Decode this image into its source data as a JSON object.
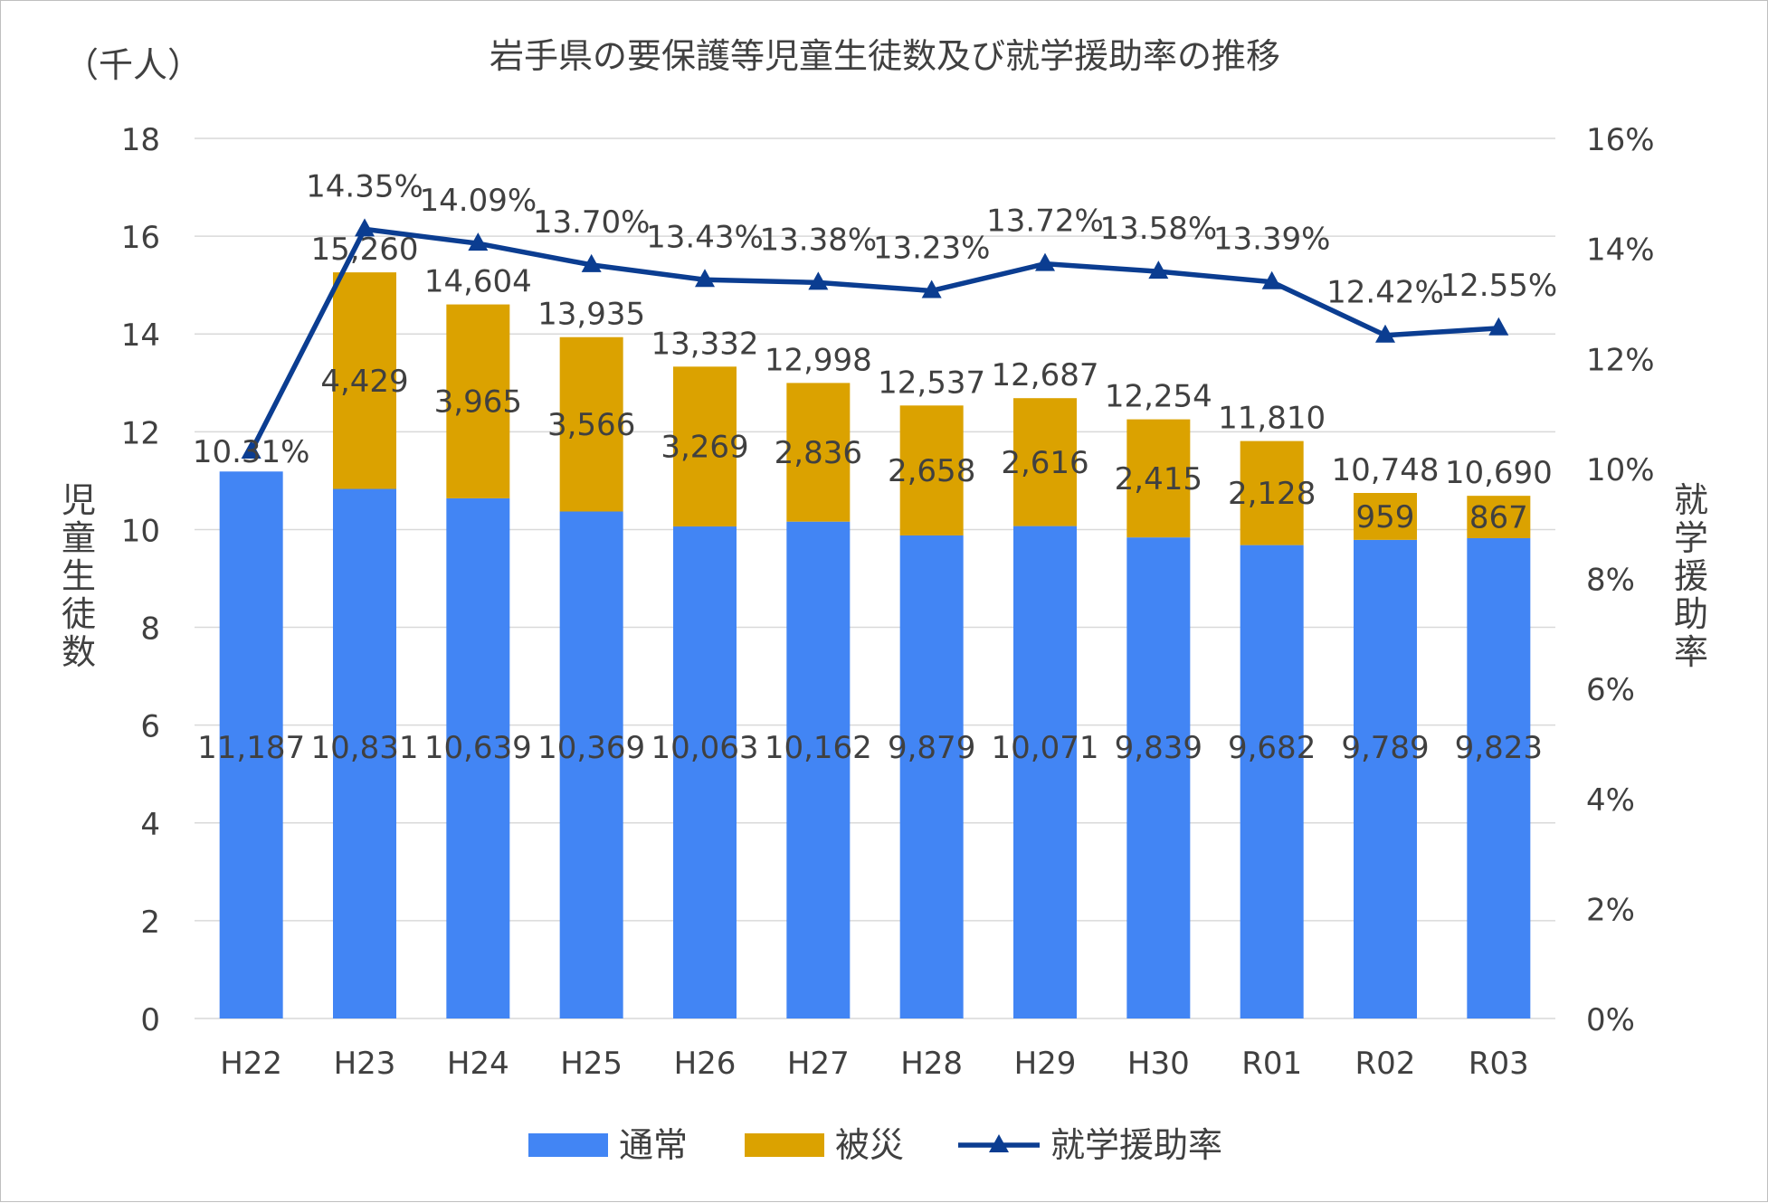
{
  "chart_data": {
    "type": "bar",
    "title": "岩手県の要保護等児童生徒数及び就学援助率の推移",
    "unit_label": "（千人）",
    "ylabel": "児童生徒数",
    "y2label": "就学援助率",
    "categories": [
      "H22",
      "H23",
      "H24",
      "H25",
      "H26",
      "H27",
      "H28",
      "H29",
      "H30",
      "R01",
      "R02",
      "R03"
    ],
    "ylim": [
      0,
      18
    ],
    "y_ticks": [
      "0",
      "2",
      "4",
      "6",
      "8",
      "10",
      "12",
      "14",
      "16",
      "18"
    ],
    "y2lim": [
      0,
      16
    ],
    "y2_ticks": [
      "0%",
      "2%",
      "4%",
      "6%",
      "8%",
      "10%",
      "12%",
      "14%",
      "16%"
    ],
    "stacked": true,
    "grid": true,
    "legend_position": "bottom",
    "series": [
      {
        "name": "通常",
        "type": "bar",
        "axis": "left",
        "color": "#4285f4",
        "values": [
          11.187,
          10.831,
          10.639,
          10.369,
          10.063,
          10.162,
          9.879,
          10.071,
          9.839,
          9.682,
          9.789,
          9.823
        ],
        "labels": [
          "11,187",
          "10,831",
          "10,639",
          "10,369",
          "10,063",
          "10,162",
          "9,879",
          "10,071",
          "9,839",
          "9,682",
          "9,789",
          "9,823"
        ]
      },
      {
        "name": "被災",
        "type": "bar",
        "axis": "left",
        "color": "#dba200",
        "values": [
          0,
          4.429,
          3.965,
          3.566,
          3.269,
          2.836,
          2.658,
          2.616,
          2.415,
          2.128,
          0.959,
          0.867
        ],
        "labels": [
          "",
          "4,429",
          "3,965",
          "3,566",
          "3,269",
          "2,836",
          "2,658",
          "2,616",
          "2,415",
          "2,128",
          "959",
          "867"
        ]
      },
      {
        "name": "就学援助率",
        "type": "line",
        "axis": "right",
        "color": "#0b3d91",
        "marker": "triangle",
        "values": [
          10.31,
          14.35,
          14.09,
          13.7,
          13.43,
          13.38,
          13.23,
          13.72,
          13.58,
          13.39,
          12.42,
          12.55
        ],
        "labels": [
          "10.31%",
          "14.35%",
          "14.09%",
          "13.70%",
          "13.43%",
          "13.38%",
          "13.23%",
          "13.72%",
          "13.58%",
          "13.39%",
          "12.42%",
          "12.55%"
        ]
      }
    ],
    "totals": {
      "values": [
        11.187,
        15.26,
        14.604,
        13.935,
        13.332,
        12.998,
        12.537,
        12.687,
        12.254,
        11.81,
        10.748,
        10.69
      ],
      "labels": [
        "",
        "15,260",
        "14,604",
        "13,935",
        "13,332",
        "12,998",
        "12,537",
        "12,687",
        "12,254",
        "11,810",
        "10,748",
        "10,690"
      ]
    }
  }
}
